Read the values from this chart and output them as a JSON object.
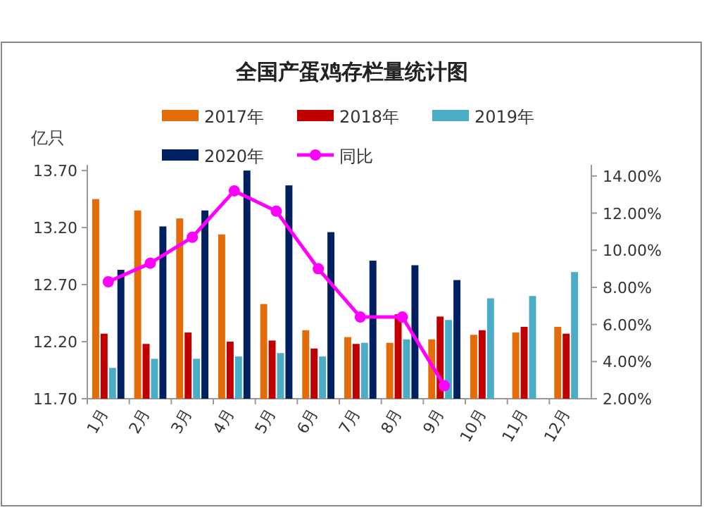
{
  "chart_data": {
    "type": "bar",
    "title": "全国产蛋鸡存栏量统计图",
    "ylabel": "亿只",
    "categories": [
      "1月",
      "2月",
      "3月",
      "4月",
      "5月",
      "6月",
      "7月",
      "8月",
      "9月",
      "10月",
      "11月",
      "12月"
    ],
    "series": [
      {
        "name": "2017年",
        "color": "#e36c09",
        "values": [
          13.45,
          13.35,
          13.28,
          13.14,
          12.53,
          12.3,
          12.24,
          12.19,
          12.22,
          12.26,
          12.28,
          12.33
        ]
      },
      {
        "name": "2018年",
        "color": "#c00000",
        "values": [
          12.27,
          12.18,
          12.28,
          12.2,
          12.21,
          12.14,
          12.18,
          12.44,
          12.42,
          12.3,
          12.33,
          12.27
        ]
      },
      {
        "name": "2019年",
        "color": "#4bacc6",
        "values": [
          11.97,
          12.05,
          12.05,
          12.07,
          12.1,
          12.07,
          12.19,
          12.22,
          12.39,
          12.58,
          12.6,
          12.81
        ]
      },
      {
        "name": "2020年",
        "color": "#002060",
        "values": [
          12.83,
          13.21,
          13.35,
          13.7,
          13.57,
          13.16,
          12.91,
          12.87,
          12.74,
          null,
          null,
          null
        ]
      },
      {
        "name": "同比",
        "type": "line",
        "axis": "y2",
        "color": "#ff00ff",
        "values": [
          8.3,
          9.3,
          10.7,
          13.2,
          12.1,
          9.0,
          6.4,
          6.4,
          2.7,
          null,
          null,
          null
        ]
      }
    ],
    "ylim": [
      11.7,
      13.75
    ],
    "yticks": [
      {
        "value": 11.7,
        "label": "11.70"
      },
      {
        "value": 12.2,
        "label": "12.20"
      },
      {
        "value": 12.7,
        "label": "12.70"
      },
      {
        "value": 13.2,
        "label": "13.20"
      },
      {
        "value": 13.7,
        "label": "13.70"
      }
    ],
    "y2lim": [
      2,
      14.6
    ],
    "y2ticks": [
      {
        "value": 2,
        "label": "2.00%"
      },
      {
        "value": 4,
        "label": "4.00%"
      },
      {
        "value": 6,
        "label": "6.00%"
      },
      {
        "value": 8,
        "label": "8.00%"
      },
      {
        "value": 10,
        "label": "10.00%"
      },
      {
        "value": 12,
        "label": "12.00%"
      },
      {
        "value": 14,
        "label": "14.00%"
      }
    ],
    "marker": "circle",
    "legend": "top",
    "grid": false
  }
}
